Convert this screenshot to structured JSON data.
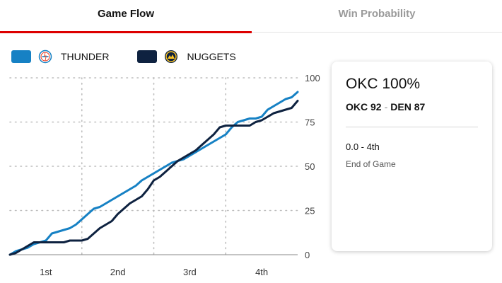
{
  "tabs": {
    "game_flow": "Game Flow",
    "win_probability": "Win Probability"
  },
  "legend": {
    "thunder": {
      "label": "THUNDER",
      "color": "#1681c4"
    },
    "nuggets": {
      "label": "NUGGETS",
      "color": "#0e2240"
    }
  },
  "card": {
    "title": "OKC 100%",
    "team1": "OKC 92",
    "separator": "-",
    "team2": "DEN 87",
    "time": "0.0 - 4th",
    "status": "End of Game"
  },
  "chart_data": {
    "type": "line",
    "title": "Game Flow",
    "x_labels": [
      "1st",
      "2nd",
      "3rd",
      "4th"
    ],
    "x_range": [
      0,
      48
    ],
    "y_range": [
      0,
      100
    ],
    "y_ticks": [
      0,
      25,
      50,
      75,
      100
    ],
    "x_unit": "game minutes",
    "y_unit": "points",
    "series": [
      {
        "name": "THUNDER",
        "color": "#1681c4",
        "points": [
          [
            0,
            0
          ],
          [
            1,
            2
          ],
          [
            3,
            4
          ],
          [
            4,
            6
          ],
          [
            5,
            7
          ],
          [
            6,
            8
          ],
          [
            7,
            12
          ],
          [
            8,
            13
          ],
          [
            9,
            14
          ],
          [
            10,
            15
          ],
          [
            11,
            17
          ],
          [
            12,
            20
          ],
          [
            13,
            23
          ],
          [
            14,
            26
          ],
          [
            15,
            27
          ],
          [
            16,
            29
          ],
          [
            17,
            31
          ],
          [
            18,
            33
          ],
          [
            19,
            35
          ],
          [
            20,
            37
          ],
          [
            21,
            39
          ],
          [
            22,
            42
          ],
          [
            23,
            44
          ],
          [
            24,
            46
          ],
          [
            25,
            48
          ],
          [
            26,
            50
          ],
          [
            27,
            52
          ],
          [
            28,
            53
          ],
          [
            29,
            54
          ],
          [
            30,
            56
          ],
          [
            31,
            58
          ],
          [
            32,
            60
          ],
          [
            33,
            62
          ],
          [
            34,
            64
          ],
          [
            35,
            66
          ],
          [
            36,
            68
          ],
          [
            37,
            72
          ],
          [
            38,
            75
          ],
          [
            39,
            76
          ],
          [
            40,
            77
          ],
          [
            41,
            77
          ],
          [
            42,
            78
          ],
          [
            43,
            82
          ],
          [
            44,
            84
          ],
          [
            45,
            86
          ],
          [
            46,
            88
          ],
          [
            47,
            89
          ],
          [
            48,
            92
          ]
        ]
      },
      {
        "name": "NUGGETS",
        "color": "#0e2240",
        "points": [
          [
            0,
            0
          ],
          [
            1,
            1
          ],
          [
            2,
            3
          ],
          [
            3,
            5
          ],
          [
            4,
            7
          ],
          [
            5,
            7
          ],
          [
            6,
            7
          ],
          [
            7,
            7
          ],
          [
            8,
            7
          ],
          [
            9,
            7
          ],
          [
            10,
            8
          ],
          [
            11,
            8
          ],
          [
            12,
            8
          ],
          [
            13,
            9
          ],
          [
            14,
            12
          ],
          [
            15,
            15
          ],
          [
            16,
            17
          ],
          [
            17,
            19
          ],
          [
            18,
            23
          ],
          [
            19,
            26
          ],
          [
            20,
            29
          ],
          [
            21,
            31
          ],
          [
            22,
            33
          ],
          [
            23,
            37
          ],
          [
            24,
            42
          ],
          [
            25,
            44
          ],
          [
            26,
            47
          ],
          [
            27,
            50
          ],
          [
            28,
            53
          ],
          [
            29,
            55
          ],
          [
            30,
            57
          ],
          [
            31,
            59
          ],
          [
            32,
            62
          ],
          [
            33,
            65
          ],
          [
            34,
            68
          ],
          [
            35,
            72
          ],
          [
            36,
            73
          ],
          [
            37,
            73
          ],
          [
            38,
            73
          ],
          [
            39,
            73
          ],
          [
            40,
            73
          ],
          [
            41,
            75
          ],
          [
            42,
            76
          ],
          [
            43,
            78
          ],
          [
            44,
            80
          ],
          [
            45,
            81
          ],
          [
            46,
            82
          ],
          [
            47,
            83
          ],
          [
            48,
            87
          ]
        ]
      }
    ]
  }
}
